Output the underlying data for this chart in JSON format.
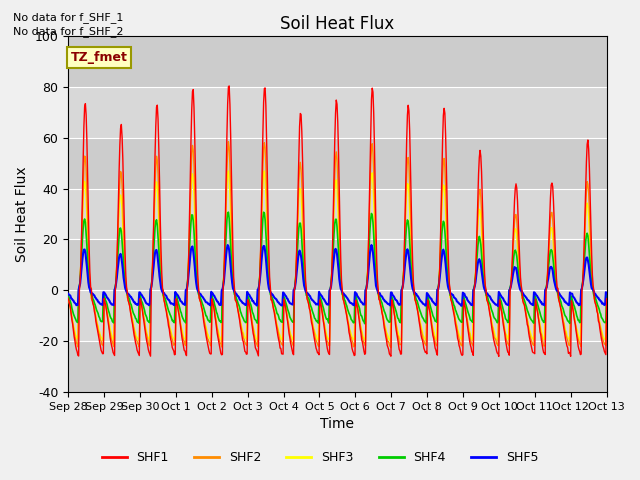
{
  "title": "Soil Heat Flux",
  "ylabel": "Soil Heat Flux",
  "xlabel": "Time",
  "ylim": [
    -40,
    100
  ],
  "yticks": [
    -40,
    -20,
    0,
    20,
    40,
    60,
    80,
    100
  ],
  "note1": "No data for f_SHF_1",
  "note2": "No data for f_SHF_2",
  "legend_label": "TZ_fmet",
  "series_colors": {
    "SHF1": "#ff0000",
    "SHF2": "#ff8c00",
    "SHF3": "#ffff00",
    "SHF4": "#00cc00",
    "SHF5": "#0000ff"
  },
  "xtick_labels": [
    "Sep 28",
    "Sep 29",
    "Sep 30",
    "Oct 1",
    "Oct 2",
    "Oct 3",
    "Oct 4",
    "Oct 5",
    "Oct 6",
    "Oct 7",
    "Oct 8",
    "Oct 9",
    "Oct 10",
    "Oct 11",
    "Oct 12",
    "Oct 13"
  ],
  "num_days": 15,
  "plot_bg_color": "#d8d8d8",
  "day_amplitudes": [
    74,
    65,
    73,
    79,
    81,
    81,
    70,
    75,
    80,
    73,
    72,
    55,
    42,
    43,
    59
  ]
}
